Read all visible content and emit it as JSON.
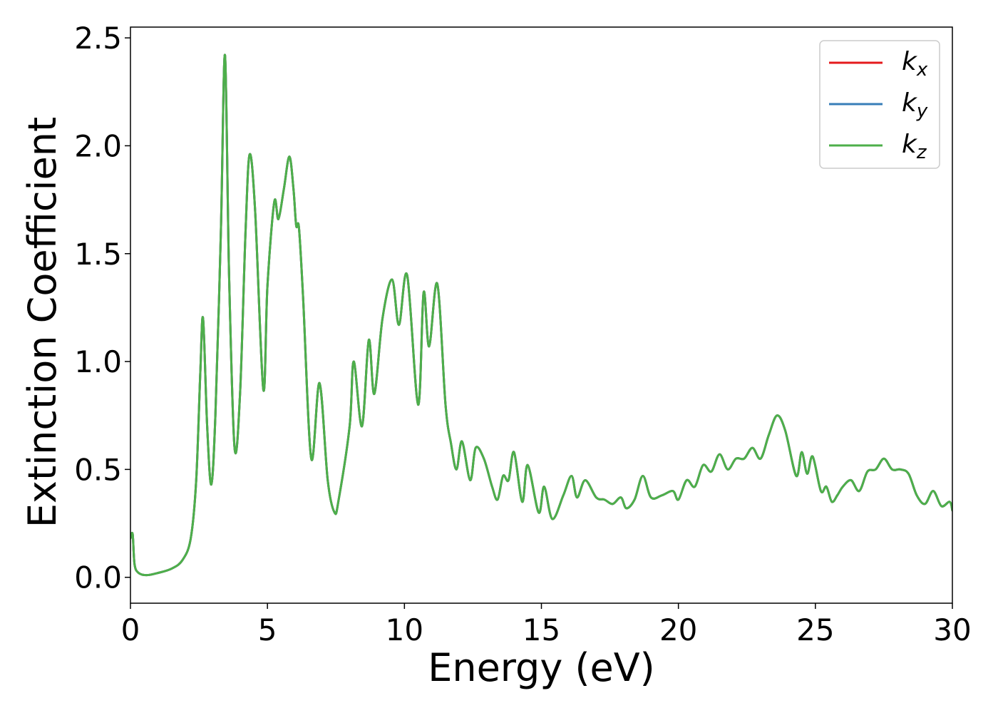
{
  "chart_data": {
    "type": "line",
    "title": "",
    "xlabel": "Energy (eV)",
    "ylabel": "Extinction Coefficient",
    "xlim": [
      0,
      30
    ],
    "ylim": [
      -0.12,
      2.55
    ],
    "xticks": [
      "0",
      "5",
      "10",
      "15",
      "20",
      "25",
      "30"
    ],
    "xtick_values": [
      0,
      5,
      10,
      15,
      20,
      25,
      30
    ],
    "yticks": [
      "0.0",
      "0.5",
      "1.0",
      "1.5",
      "2.0",
      "2.5"
    ],
    "ytick_values": [
      0,
      0.5,
      1.0,
      1.5,
      2.0,
      2.5
    ],
    "grid": false,
    "legend_position": "top-right",
    "series": [
      {
        "name": "k_x",
        "label_main": "k",
        "label_sub": "x",
        "color": "#e41a1c",
        "x": [
          0.0,
          0.08,
          0.15,
          0.3,
          0.6,
          1.0,
          1.5,
          1.9,
          2.2,
          2.4,
          2.55,
          2.65,
          2.8,
          2.95,
          3.1,
          3.3,
          3.45,
          3.6,
          3.8,
          4.0,
          4.2,
          4.35,
          4.55,
          4.85,
          5.0,
          5.25,
          5.4,
          5.6,
          5.8,
          5.95,
          6.05,
          6.15,
          6.3,
          6.6,
          6.9,
          7.2,
          7.45,
          7.6,
          8.0,
          8.15,
          8.45,
          8.7,
          8.9,
          9.2,
          9.55,
          9.8,
          10.1,
          10.5,
          10.7,
          10.9,
          11.2,
          11.5,
          11.7,
          11.9,
          12.1,
          12.4,
          12.6,
          12.9,
          13.2,
          13.4,
          13.6,
          13.8,
          14.0,
          14.3,
          14.5,
          14.9,
          15.1,
          15.4,
          15.8,
          16.1,
          16.3,
          16.6,
          17.0,
          17.3,
          17.6,
          17.9,
          18.1,
          18.4,
          18.7,
          19.0,
          19.4,
          19.8,
          20.0,
          20.3,
          20.6,
          20.9,
          21.2,
          21.5,
          21.8,
          22.1,
          22.4,
          22.7,
          23.0,
          23.3,
          23.6,
          23.9,
          24.3,
          24.5,
          24.7,
          24.9,
          25.2,
          25.4,
          25.6,
          25.8,
          26.0,
          26.3,
          26.6,
          26.9,
          27.2,
          27.5,
          27.8,
          28.1,
          28.4,
          28.7,
          29.0,
          29.3,
          29.6,
          29.9,
          30.0
        ],
        "values": [
          0.18,
          0.2,
          0.06,
          0.02,
          0.01,
          0.02,
          0.04,
          0.08,
          0.18,
          0.45,
          0.95,
          1.2,
          0.7,
          0.43,
          0.75,
          1.6,
          2.42,
          1.4,
          0.6,
          0.85,
          1.6,
          1.96,
          1.7,
          0.87,
          1.35,
          1.74,
          1.66,
          1.8,
          1.95,
          1.8,
          1.63,
          1.62,
          1.3,
          0.55,
          0.9,
          0.45,
          0.3,
          0.36,
          0.7,
          1.0,
          0.7,
          1.1,
          0.85,
          1.2,
          1.38,
          1.17,
          1.4,
          0.8,
          1.32,
          1.07,
          1.36,
          0.8,
          0.62,
          0.5,
          0.63,
          0.45,
          0.6,
          0.55,
          0.42,
          0.36,
          0.47,
          0.45,
          0.58,
          0.35,
          0.52,
          0.3,
          0.42,
          0.27,
          0.38,
          0.47,
          0.37,
          0.45,
          0.37,
          0.36,
          0.34,
          0.37,
          0.32,
          0.36,
          0.47,
          0.37,
          0.38,
          0.4,
          0.36,
          0.45,
          0.42,
          0.52,
          0.49,
          0.57,
          0.5,
          0.55,
          0.55,
          0.6,
          0.55,
          0.66,
          0.75,
          0.68,
          0.47,
          0.58,
          0.48,
          0.56,
          0.4,
          0.42,
          0.35,
          0.38,
          0.42,
          0.45,
          0.4,
          0.49,
          0.5,
          0.55,
          0.5,
          0.5,
          0.48,
          0.38,
          0.34,
          0.4,
          0.33,
          0.35,
          0.31
        ]
      },
      {
        "name": "k_y",
        "label_main": "k",
        "label_sub": "y",
        "color": "#377eb8",
        "same_as": 0
      },
      {
        "name": "k_z",
        "label_main": "k",
        "label_sub": "z",
        "color": "#4daf4a",
        "same_as": 0
      }
    ]
  }
}
